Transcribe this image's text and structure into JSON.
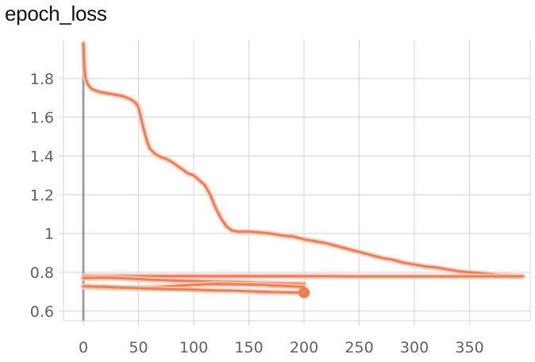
{
  "chart_data": {
    "type": "line",
    "title": "epoch_loss",
    "xlabel": "",
    "ylabel": "",
    "xlim": [
      -18,
      405
    ],
    "ylim": [
      0.55,
      2.0
    ],
    "x_ticks": [
      0,
      50,
      100,
      150,
      200,
      250,
      300,
      350
    ],
    "y_ticks": [
      0.6,
      0.8,
      1,
      1.2,
      1.4,
      1.6,
      1.8
    ],
    "x_tick_labels": [
      "0",
      "50",
      "100",
      "150",
      "200",
      "250",
      "300",
      "350"
    ],
    "y_tick_labels": [
      "0.6",
      "0.8",
      "1",
      "1.2",
      "1.4",
      "1.6",
      "1.8"
    ],
    "grid": true,
    "line_color": "#f07d55",
    "shade_color": "#fbcbb8",
    "axis_color": "#9e9e9e",
    "series": [
      {
        "x": [
          0,
          1,
          2,
          4,
          6,
          8,
          10,
          15,
          20,
          25,
          30,
          35,
          40,
          45,
          48,
          50,
          52,
          55,
          58,
          60,
          65,
          70,
          75,
          80,
          85,
          90,
          95,
          100,
          105,
          110,
          115,
          120,
          125,
          130,
          135,
          140,
          150,
          160,
          170,
          180,
          190,
          200,
          210,
          220,
          230,
          240,
          250,
          260,
          270,
          280,
          290,
          300,
          310,
          320,
          330,
          340,
          350,
          360,
          370,
          380,
          390,
          398
        ],
        "y": [
          1.98,
          1.85,
          1.8,
          1.77,
          1.755,
          1.745,
          1.74,
          1.73,
          1.725,
          1.72,
          1.715,
          1.71,
          1.7,
          1.685,
          1.67,
          1.65,
          1.6,
          1.53,
          1.47,
          1.44,
          1.41,
          1.395,
          1.385,
          1.37,
          1.35,
          1.33,
          1.31,
          1.3,
          1.275,
          1.25,
          1.2,
          1.13,
          1.075,
          1.035,
          1.015,
          1.01,
          1.01,
          1.005,
          1.0,
          0.99,
          0.985,
          0.97,
          0.96,
          0.95,
          0.935,
          0.92,
          0.905,
          0.89,
          0.875,
          0.865,
          0.85,
          0.84,
          0.83,
          0.825,
          0.815,
          0.805,
          0.8,
          0.795,
          0.79,
          0.785,
          0.78,
          0.78
        ]
      },
      {
        "x": [
          0,
          50,
          100,
          150,
          200,
          250,
          300,
          350,
          398
        ],
        "y": [
          0.78,
          0.78,
          0.78,
          0.78,
          0.78,
          0.779,
          0.779,
          0.779,
          0.779
        ]
      },
      {
        "x": [
          0,
          20,
          40,
          60,
          80,
          100,
          120,
          140,
          160,
          180,
          200
        ],
        "y": [
          0.77,
          0.772,
          0.768,
          0.762,
          0.758,
          0.755,
          0.752,
          0.75,
          0.745,
          0.742,
          0.74
        ]
      },
      {
        "x": [
          0,
          20,
          40,
          60,
          80,
          100,
          120,
          140,
          160,
          180,
          200
        ],
        "y": [
          0.725,
          0.722,
          0.72,
          0.722,
          0.728,
          0.735,
          0.74,
          0.738,
          0.735,
          0.73,
          0.725
        ]
      },
      {
        "x": [
          0,
          20,
          40,
          60,
          80,
          100,
          120,
          140,
          160,
          180,
          200
        ],
        "y": [
          0.728,
          0.725,
          0.72,
          0.716,
          0.712,
          0.71,
          0.707,
          0.704,
          0.7,
          0.697,
          0.695
        ],
        "end_marker": true
      }
    ]
  }
}
